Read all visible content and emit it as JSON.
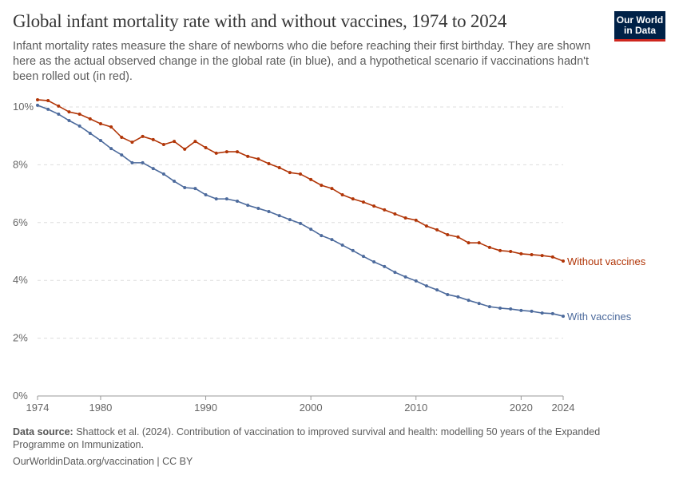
{
  "header": {
    "title": "Global infant mortality rate with and without vaccines, 1974 to 2024",
    "subtitle": "Infant mortality rates measure the share of newborns who die before reaching their first birthday. They are shown here as the actual observed change in the global rate (in blue), and a hypothetical scenario if vaccinations hadn't been rolled out (in red).",
    "logo": "Our World in Data"
  },
  "footer": {
    "source_label": "Data source:",
    "source_text": "Shattock et al. (2024). Contribution of vaccination to improved survival and health: modelling 50 years of the Expanded Programme on Immunization.",
    "license": "OurWorldinData.org/vaccination | CC BY"
  },
  "chart_data": {
    "type": "line",
    "title": "Global infant mortality rate with and without vaccines, 1974 to 2024",
    "xlim": [
      1974,
      2024
    ],
    "ylim": [
      0,
      10
    ],
    "x_ticks": [
      "1974",
      "1980",
      "1990",
      "2000",
      "2010",
      "2020",
      "2024"
    ],
    "y_ticks": [
      "0%",
      "2%",
      "4%",
      "6%",
      "8%",
      "10%"
    ],
    "grid": "horizontal dashed",
    "legend": "inline labels at line ends (right)",
    "x": [
      1974,
      1975,
      1976,
      1977,
      1978,
      1979,
      1980,
      1981,
      1982,
      1983,
      1984,
      1985,
      1986,
      1987,
      1988,
      1989,
      1990,
      1991,
      1992,
      1993,
      1994,
      1995,
      1996,
      1997,
      1998,
      1999,
      2000,
      2001,
      2002,
      2003,
      2004,
      2005,
      2006,
      2007,
      2008,
      2009,
      2010,
      2011,
      2012,
      2013,
      2014,
      2015,
      2016,
      2017,
      2018,
      2019,
      2020,
      2021,
      2022,
      2023,
      2024
    ],
    "series": [
      {
        "name": "Without vaccines",
        "color": "#b13507",
        "values": [
          10.25,
          10.22,
          10.03,
          9.83,
          9.75,
          9.59,
          9.42,
          9.31,
          8.95,
          8.78,
          8.98,
          8.87,
          8.7,
          8.81,
          8.54,
          8.81,
          8.59,
          8.4,
          8.45,
          8.45,
          8.29,
          8.2,
          8.04,
          7.9,
          7.73,
          7.68,
          7.49,
          7.29,
          7.18,
          6.96,
          6.82,
          6.71,
          6.57,
          6.44,
          6.3,
          6.16,
          6.08,
          5.88,
          5.75,
          5.58,
          5.5,
          5.3,
          5.3,
          5.14,
          5.03,
          5.0,
          4.92,
          4.89,
          4.86,
          4.81,
          4.67
        ]
      },
      {
        "name": "With vaccines",
        "color": "#4c6a9c",
        "values": [
          10.06,
          9.92,
          9.75,
          9.53,
          9.34,
          9.09,
          8.84,
          8.56,
          8.34,
          8.07,
          8.07,
          7.87,
          7.68,
          7.43,
          7.21,
          7.18,
          6.96,
          6.82,
          6.82,
          6.74,
          6.6,
          6.49,
          6.38,
          6.24,
          6.1,
          5.97,
          5.77,
          5.55,
          5.41,
          5.22,
          5.03,
          4.83,
          4.64,
          4.48,
          4.28,
          4.12,
          3.98,
          3.81,
          3.67,
          3.51,
          3.43,
          3.31,
          3.2,
          3.09,
          3.04,
          3.01,
          2.96,
          2.93,
          2.87,
          2.85,
          2.76
        ]
      }
    ]
  }
}
